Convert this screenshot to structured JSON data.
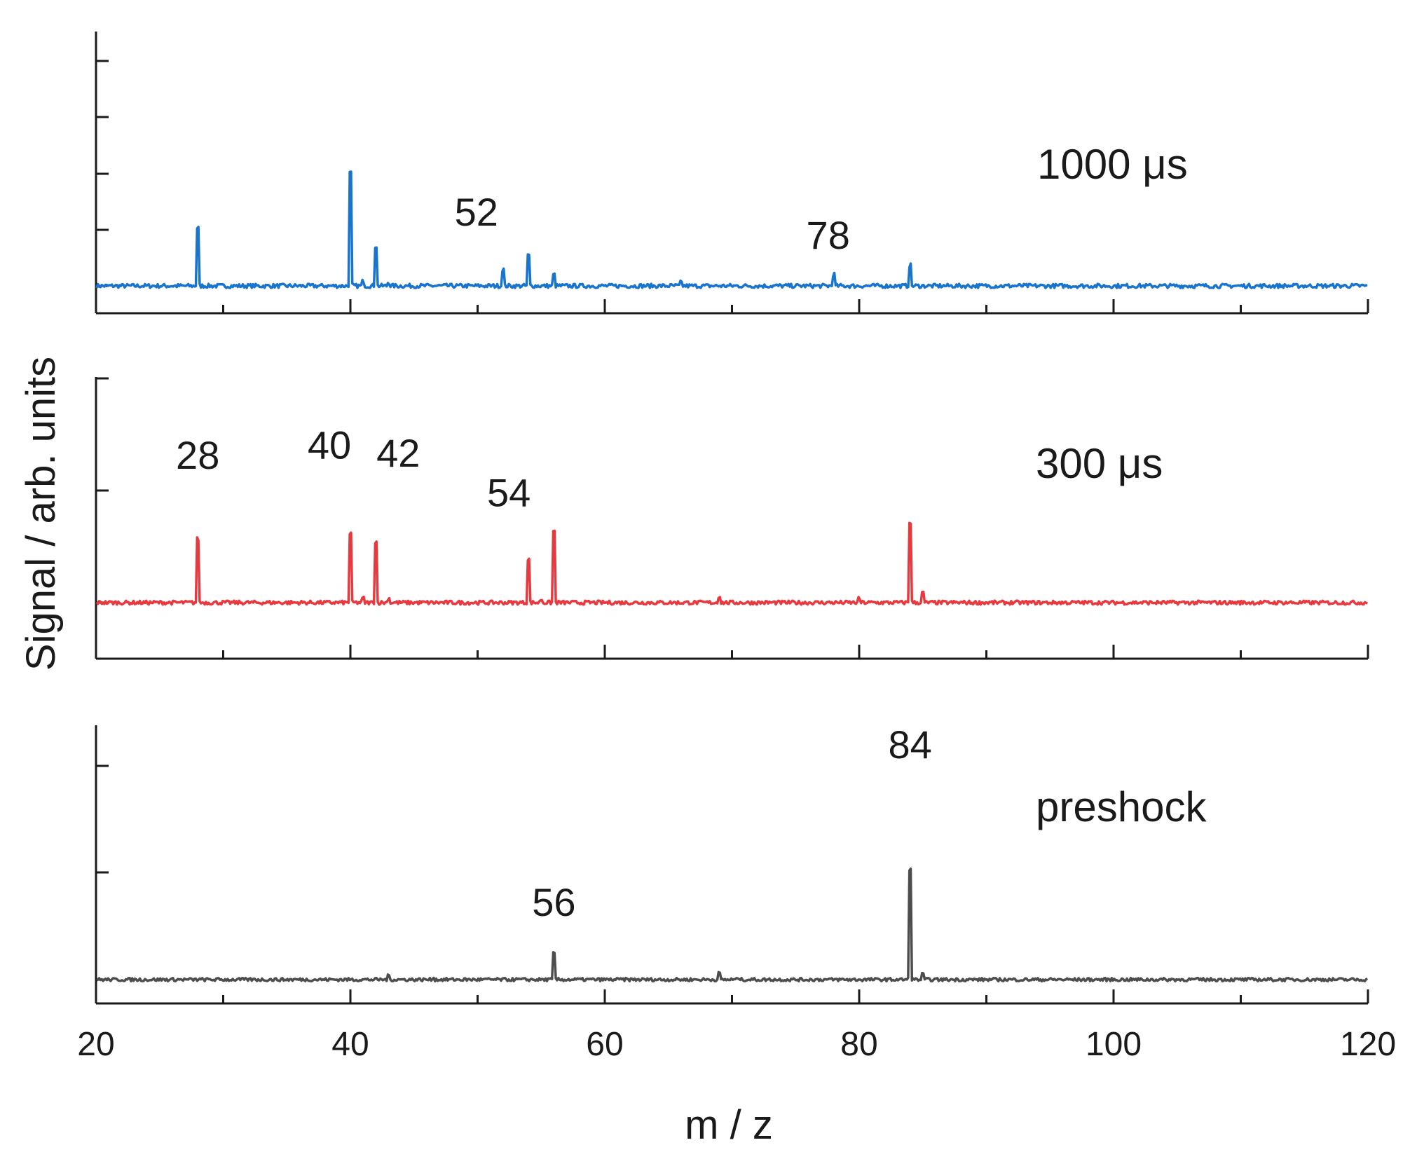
{
  "chart_data": {
    "type": "line",
    "title": "",
    "xlabel": "m / z",
    "ylabel": "Signal / arb. units",
    "xlim": [
      20,
      120
    ],
    "xticks": [
      20,
      40,
      60,
      80,
      100,
      120
    ],
    "x_tick_labels": [
      "20",
      "40",
      "60",
      "80",
      "100",
      "120"
    ],
    "panels": [
      {
        "name": "1000 µs",
        "label": "1000 μs",
        "color": "#1874cd",
        "peaks": [
          {
            "mz": 28,
            "height": 105
          },
          {
            "mz": 40,
            "height": 205
          },
          {
            "mz": 41,
            "height": 8
          },
          {
            "mz": 42,
            "height": 72
          },
          {
            "mz": 43,
            "height": 6
          },
          {
            "mz": 52,
            "height": 30
          },
          {
            "mz": 54,
            "height": 55
          },
          {
            "mz": 56,
            "height": 20
          },
          {
            "mz": 66,
            "height": 6
          },
          {
            "mz": 78,
            "height": 21
          },
          {
            "mz": 84,
            "height": 37
          }
        ],
        "peak_labels": [
          {
            "mz": 52,
            "text": "52"
          },
          {
            "mz": 78,
            "text": "78"
          }
        ],
        "ylim": [
          0,
          220
        ]
      },
      {
        "name": "300 µs",
        "label": "300 μs",
        "color": "#e8393f",
        "peaks": [
          {
            "mz": 28,
            "height": 120
          },
          {
            "mz": 40,
            "height": 130
          },
          {
            "mz": 41,
            "height": 8
          },
          {
            "mz": 42,
            "height": 115
          },
          {
            "mz": 43,
            "height": 8
          },
          {
            "mz": 54,
            "height": 82
          },
          {
            "mz": 55,
            "height": 6
          },
          {
            "mz": 56,
            "height": 135
          },
          {
            "mz": 69,
            "height": 12
          },
          {
            "mz": 80,
            "height": 7
          },
          {
            "mz": 84,
            "height": 152
          },
          {
            "mz": 85,
            "height": 18
          }
        ],
        "peak_labels": [
          {
            "mz": 28,
            "text": "28"
          },
          {
            "mz": 40,
            "text": "40"
          },
          {
            "mz": 42,
            "text": "42"
          },
          {
            "mz": 54,
            "text": "54"
          }
        ],
        "ylim": [
          0,
          200
        ]
      },
      {
        "name": "preshock",
        "label": "preshock",
        "color": "#4d4d4d",
        "peaks": [
          {
            "mz": 43,
            "height": 8
          },
          {
            "mz": 46.5,
            "height": 4
          },
          {
            "mz": 56,
            "height": 60
          },
          {
            "mz": 69,
            "height": 14
          },
          {
            "mz": 70.5,
            "height": 4
          },
          {
            "mz": 84,
            "height": 255
          },
          {
            "mz": 85,
            "height": 12
          }
        ],
        "peak_labels": [
          {
            "mz": 56,
            "text": "56"
          },
          {
            "mz": 84,
            "text": "84"
          }
        ],
        "ylim": [
          0,
          280
        ]
      }
    ]
  }
}
